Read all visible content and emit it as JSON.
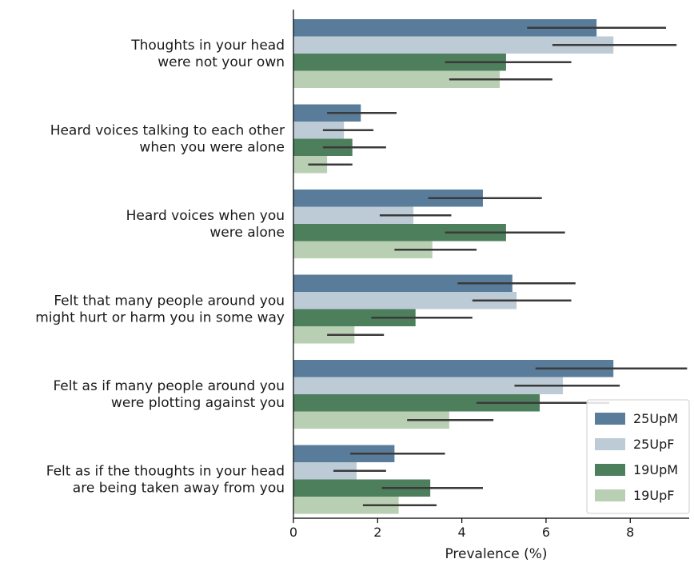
{
  "chart_data": {
    "type": "bar",
    "orientation": "horizontal",
    "title": "",
    "xlabel": "Prevalence (%)",
    "ylabel": "",
    "xlim": [
      0,
      9.4
    ],
    "xticks": [
      "0",
      "2",
      "4",
      "6",
      "8"
    ],
    "grid": false,
    "legend_position": "lower-right",
    "categories": [
      [
        "Thoughts in your head",
        "were not your own"
      ],
      [
        "Heard voices talking to each other",
        "when you were alone"
      ],
      [
        "Heard voices when you",
        "were alone"
      ],
      [
        "Felt that many people around you",
        "might hurt or harm you in some way"
      ],
      [
        "Felt as if many people around you",
        "were plotting against you"
      ],
      [
        "Felt as if the thoughts in your head",
        "are being taken away from you"
      ]
    ],
    "series": [
      {
        "name": "25UpM",
        "color": "#5a7c9b",
        "values": [
          7.2,
          1.6,
          4.5,
          5.2,
          7.6,
          2.4
        ],
        "ci": [
          [
            5.55,
            8.85
          ],
          [
            0.8,
            2.45
          ],
          [
            3.2,
            5.9
          ],
          [
            3.9,
            6.7
          ],
          [
            5.75,
            9.35
          ],
          [
            1.35,
            3.6
          ]
        ]
      },
      {
        "name": "25UpF",
        "color": "#bccbd6",
        "values": [
          7.6,
          1.2,
          2.85,
          5.3,
          6.4,
          1.5
        ],
        "ci": [
          [
            6.15,
            9.1
          ],
          [
            0.7,
            1.9
          ],
          [
            2.05,
            3.75
          ],
          [
            4.25,
            6.6
          ],
          [
            5.25,
            7.75
          ],
          [
            0.95,
            2.2
          ]
        ]
      },
      {
        "name": "19UpM",
        "color": "#4e7f5c",
        "values": [
          5.05,
          1.4,
          5.05,
          2.9,
          5.85,
          3.25
        ],
        "ci": [
          [
            3.6,
            6.6
          ],
          [
            0.7,
            2.2
          ],
          [
            3.6,
            6.45
          ],
          [
            1.85,
            4.25
          ],
          [
            4.35,
            7.5
          ],
          [
            2.1,
            4.5
          ]
        ]
      },
      {
        "name": "19UpF",
        "color": "#b9cfb3",
        "values": [
          4.9,
          0.8,
          3.3,
          1.45,
          3.7,
          2.5
        ],
        "ci": [
          [
            3.7,
            6.15
          ],
          [
            0.35,
            1.4
          ],
          [
            2.4,
            4.35
          ],
          [
            0.8,
            2.15
          ],
          [
            2.7,
            4.75
          ],
          [
            1.65,
            3.4
          ]
        ]
      }
    ],
    "errorbar_color": "#3a3a3a"
  }
}
